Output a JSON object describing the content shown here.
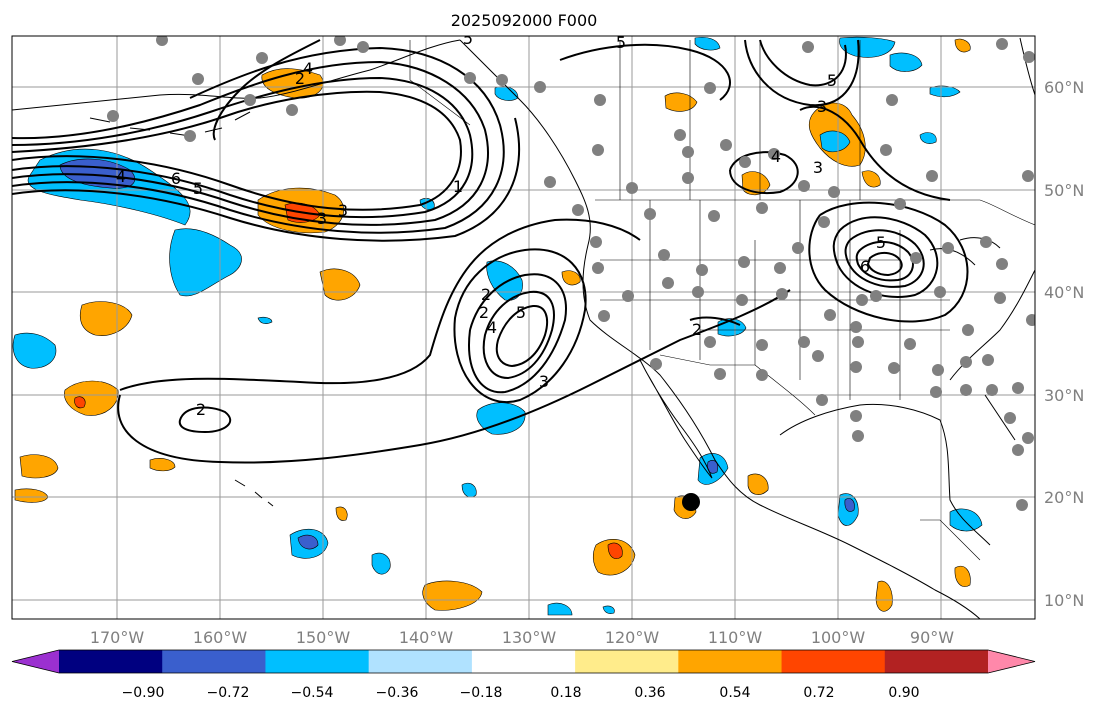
{
  "title": "2025092000 F000",
  "lon_labels": [
    "170°W",
    "160°W",
    "150°W",
    "140°W",
    "130°W",
    "120°W",
    "110°W",
    "100°W",
    "90°W"
  ],
  "lat_labels": [
    "60°N",
    "50°N",
    "40°N",
    "30°N",
    "20°N",
    "10°N"
  ],
  "colorbar": {
    "ticks": [
      "−0.90",
      "−0.72",
      "−0.54",
      "−0.36",
      "−0.18",
      "0.18",
      "0.36",
      "0.54",
      "0.72",
      "0.90"
    ],
    "colors": [
      "#9b30d0",
      "#000080",
      "#3a5fcd",
      "#00bfff",
      "#b0e2ff",
      "#ffffff",
      "#ffec8b",
      "#ffa500",
      "#ff4500",
      "#b22222",
      "#ff88aa"
    ]
  },
  "contour_labels": [
    "2",
    "2",
    "2",
    "3",
    "3",
    "4",
    "5",
    "1",
    "3",
    "5",
    "6",
    "5",
    "4",
    "3",
    "5",
    "4",
    "3",
    "5",
    "5",
    "6",
    "4",
    "2",
    "2"
  ],
  "fill_colors": {
    "blue": "#00bfff",
    "purple": "#3a5fcd",
    "orange": "#ffa500",
    "red": "#ff4500"
  }
}
